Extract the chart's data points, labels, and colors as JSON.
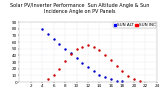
{
  "title": "Solar PV/Inverter Performance  Sun Altitude Angle & Sun Incidence Angle on PV Panels",
  "plot_bg_color": "#ffffff",
  "fig_bg_color": "#ffffff",
  "grid_color": "#ccccdd",
  "ylim": [
    0,
    90
  ],
  "xlim": [
    0,
    24
  ],
  "yticks": [
    0,
    10,
    20,
    30,
    40,
    50,
    60,
    70,
    80,
    90
  ],
  "xticks": [
    2,
    4,
    6,
    8,
    10,
    12,
    14,
    16,
    18,
    20,
    22,
    24
  ],
  "time_labels": [
    "2",
    "4",
    "6",
    "8",
    "10",
    "12",
    "14",
    "16",
    "18",
    "20",
    "22",
    "24"
  ],
  "sun_alt_x": [
    4,
    5,
    6,
    7,
    8,
    9,
    10,
    11,
    12,
    13,
    14,
    15,
    16,
    17,
    18
  ],
  "sun_alt_y": [
    80,
    72,
    64,
    57,
    50,
    43,
    36,
    29,
    22,
    16,
    11,
    7,
    4,
    2,
    1
  ],
  "sun_inc_x": [
    5,
    6,
    7,
    8,
    9,
    10,
    11,
    12,
    13,
    14,
    15,
    16,
    17,
    18,
    19,
    20,
    21
  ],
  "sun_inc_y": [
    5,
    10,
    20,
    32,
    42,
    49,
    53,
    55,
    53,
    48,
    41,
    33,
    24,
    16,
    9,
    4,
    1
  ],
  "sun_alt_color": "#0000cc",
  "sun_inc_color": "#cc0000",
  "markersize": 1.5,
  "figsize": [
    1.6,
    1.0
  ],
  "dpi": 100,
  "title_fontsize": 3.5,
  "tick_fontsize": 3,
  "legend_fontsize": 3,
  "legend_labels": [
    "SUN ALT",
    "SUN INC"
  ],
  "legend_box_colors": [
    "#0000ff",
    "#ff0000",
    "#ff0000",
    "#0000ff"
  ]
}
